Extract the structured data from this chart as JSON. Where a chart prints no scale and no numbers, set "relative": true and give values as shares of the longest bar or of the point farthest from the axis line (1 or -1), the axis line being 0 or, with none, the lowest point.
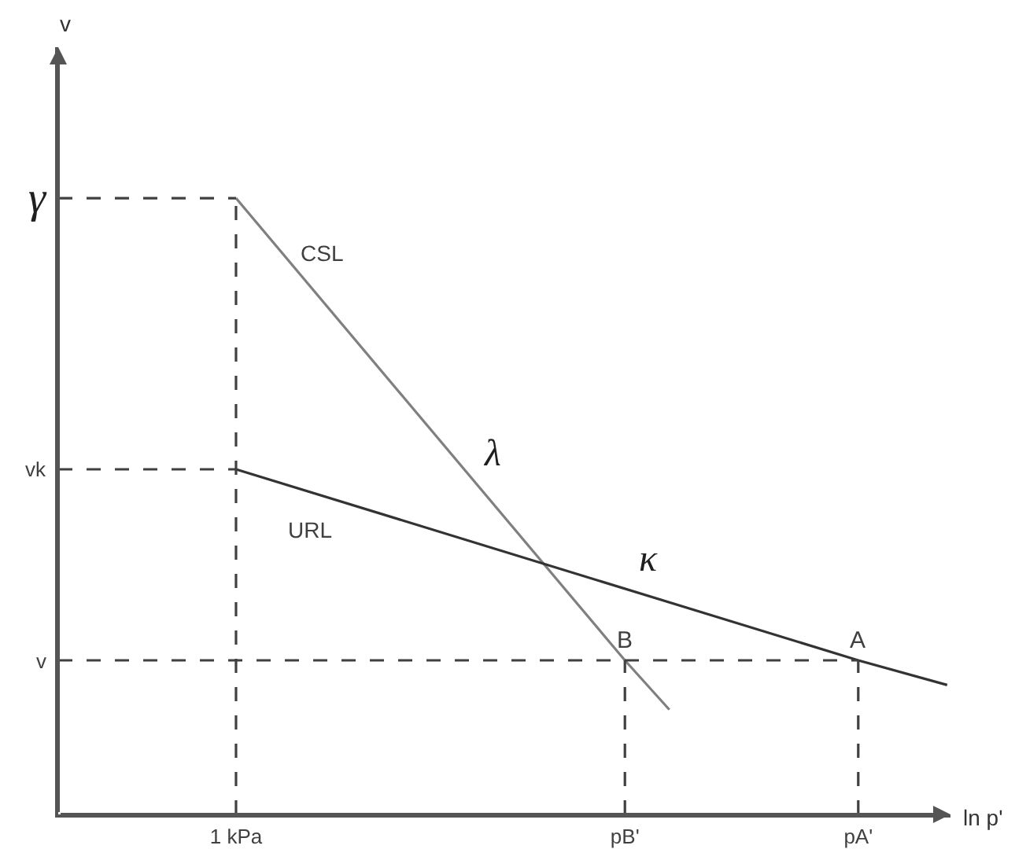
{
  "chart_data": {
    "type": "line",
    "relative": true,
    "xlabel": "ln p'",
    "grid": false,
    "marker": "none",
    "line_style": "solid",
    "categories": [
      null,
      null,
      null,
      null,
      null,
      null,
      null,
      null,
      null,
      null,
      null,
      null,
      null,
      null,
      null,
      "1 kPa",
      null,
      null,
      null,
      null,
      null,
      null,
      null,
      null,
      null,
      null,
      null,
      null,
      null,
      null,
      null,
      null,
      null,
      null,
      null,
      null,
      null,
      null,
      null,
      null,
      null,
      null,
      null,
      null,
      null,
      null,
      null,
      null,
      null,
      null,
      "pB'",
      null,
      null,
      null,
      null,
      null,
      null,
      null,
      null,
      null,
      null,
      null,
      null,
      null,
      null,
      null,
      null,
      null,
      null,
      null,
      null,
      "pA'",
      null,
      null,
      null,
      null,
      null,
      null,
      null,
      null
    ],
    "series": [
      {
        "name": "CSL",
        "color": "#808080",
        "values": [
          null,
          null,
          null,
          null,
          null,
          null,
          null,
          null,
          null,
          null,
          null,
          null,
          null,
          null,
          null,
          1,
          null,
          null,
          null,
          null,
          null,
          null,
          null,
          null,
          null,
          null,
          null,
          null,
          null,
          null,
          null,
          null,
          null,
          null,
          null,
          null,
          null,
          null,
          null,
          null,
          null,
          null,
          null,
          null,
          null,
          null,
          null,
          null,
          null,
          null,
          0.25,
          null,
          null,
          null,
          0.17,
          null,
          null,
          null,
          null,
          null,
          null,
          null,
          null,
          null,
          null,
          null,
          null,
          null,
          null,
          null,
          null,
          null,
          null,
          null,
          null,
          null,
          null,
          null,
          null,
          null
        ]
      },
      {
        "name": "URL",
        "color": "#333333",
        "values": [
          null,
          null,
          null,
          null,
          null,
          null,
          null,
          null,
          null,
          null,
          null,
          null,
          null,
          null,
          null,
          0.56,
          null,
          null,
          null,
          null,
          null,
          null,
          null,
          null,
          null,
          null,
          null,
          null,
          null,
          null,
          null,
          null,
          null,
          null,
          null,
          null,
          null,
          null,
          null,
          null,
          null,
          null,
          null,
          null,
          null,
          null,
          null,
          null,
          null,
          null,
          null,
          null,
          null,
          null,
          null,
          null,
          null,
          null,
          null,
          null,
          null,
          null,
          null,
          null,
          null,
          null,
          null,
          null,
          null,
          null,
          null,
          0.25,
          null,
          null,
          null,
          null,
          null,
          null,
          null,
          0.21
        ]
      }
    ],
    "ref_lines": [
      {
        "axis": "y",
        "value": 1,
        "label": "γ",
        "color": "#404040",
        "line_style": "dashed"
      },
      {
        "axis": "y",
        "value": 0.56,
        "label": "vk",
        "color": "#404040",
        "line_style": "dashed"
      },
      {
        "axis": "y",
        "value": 0.25,
        "label": "v",
        "color": "#404040",
        "line_style": "dashed"
      },
      {
        "axis": "x",
        "value": "1 kPa",
        "color": "#404040",
        "line_style": "dashed"
      },
      {
        "axis": "x",
        "value": "pB'",
        "color": "#404040",
        "line_style": "dashed"
      },
      {
        "axis": "x",
        "value": "pA'",
        "color": "#404040",
        "line_style": "dashed"
      }
    ],
    "annotations": [
      "v",
      "λ",
      "κ",
      {
        "text": "B",
        "x": "pB'",
        "y": 0.25
      },
      {
        "text": "A",
        "x": "pA'",
        "y": 0.25
      }
    ]
  }
}
